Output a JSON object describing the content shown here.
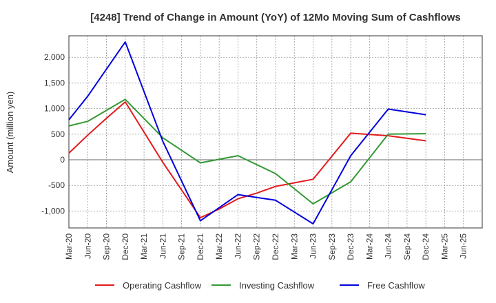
{
  "chart_data": {
    "type": "line",
    "title": "[4248]  Trend of Change in Amount (YoY) of 12Mo Moving Sum of Cashflows",
    "xlabel": "",
    "ylabel": "Amount (million yen)",
    "categories": [
      "Mar-20",
      "Jun-20",
      "Sep-20",
      "Dec-20",
      "Mar-21",
      "Jun-21",
      "Sep-21",
      "Dec-21",
      "Mar-22",
      "Jun-22",
      "Sep-22",
      "Dec-22",
      "Mar-23",
      "Jun-23",
      "Sep-23",
      "Dec-23",
      "Mar-24",
      "Jun-24",
      "Sep-24",
      "Dec-24",
      "Mar-25",
      "Jun-25"
    ],
    "yticks": [
      -1000,
      -500,
      0,
      500,
      1000,
      1500,
      2000
    ],
    "ytick_labels": [
      "-1,000",
      "-500",
      "0",
      "500",
      "1,000",
      "1,500",
      "2,000"
    ],
    "ylim": [
      -1330,
      2420
    ],
    "grid": true,
    "legend_position": "bottom",
    "series": [
      {
        "name": "Operating Cashflow",
        "color": "#e41a1c",
        "values": [
          130,
          480,
          810,
          1130,
          540,
          -50,
          null,
          -1130,
          -960,
          -760,
          -650,
          -520,
          -450,
          -380,
          null,
          520,
          null,
          470,
          null,
          370,
          null,
          null
        ]
      },
      {
        "name": "Investing Cashflow",
        "color": "#339933",
        "values": [
          660,
          750,
          null,
          1180,
          null,
          430,
          null,
          -60,
          null,
          80,
          null,
          -270,
          null,
          -860,
          null,
          -430,
          null,
          500,
          null,
          510,
          null,
          null
        ]
      },
      {
        "name": "Free Cashflow",
        "color": "#0000dd",
        "values": [
          780,
          1240,
          null,
          2300,
          null,
          360,
          null,
          -1190,
          null,
          -680,
          null,
          -790,
          null,
          -1250,
          null,
          80,
          null,
          990,
          null,
          880,
          null,
          null
        ]
      }
    ]
  }
}
